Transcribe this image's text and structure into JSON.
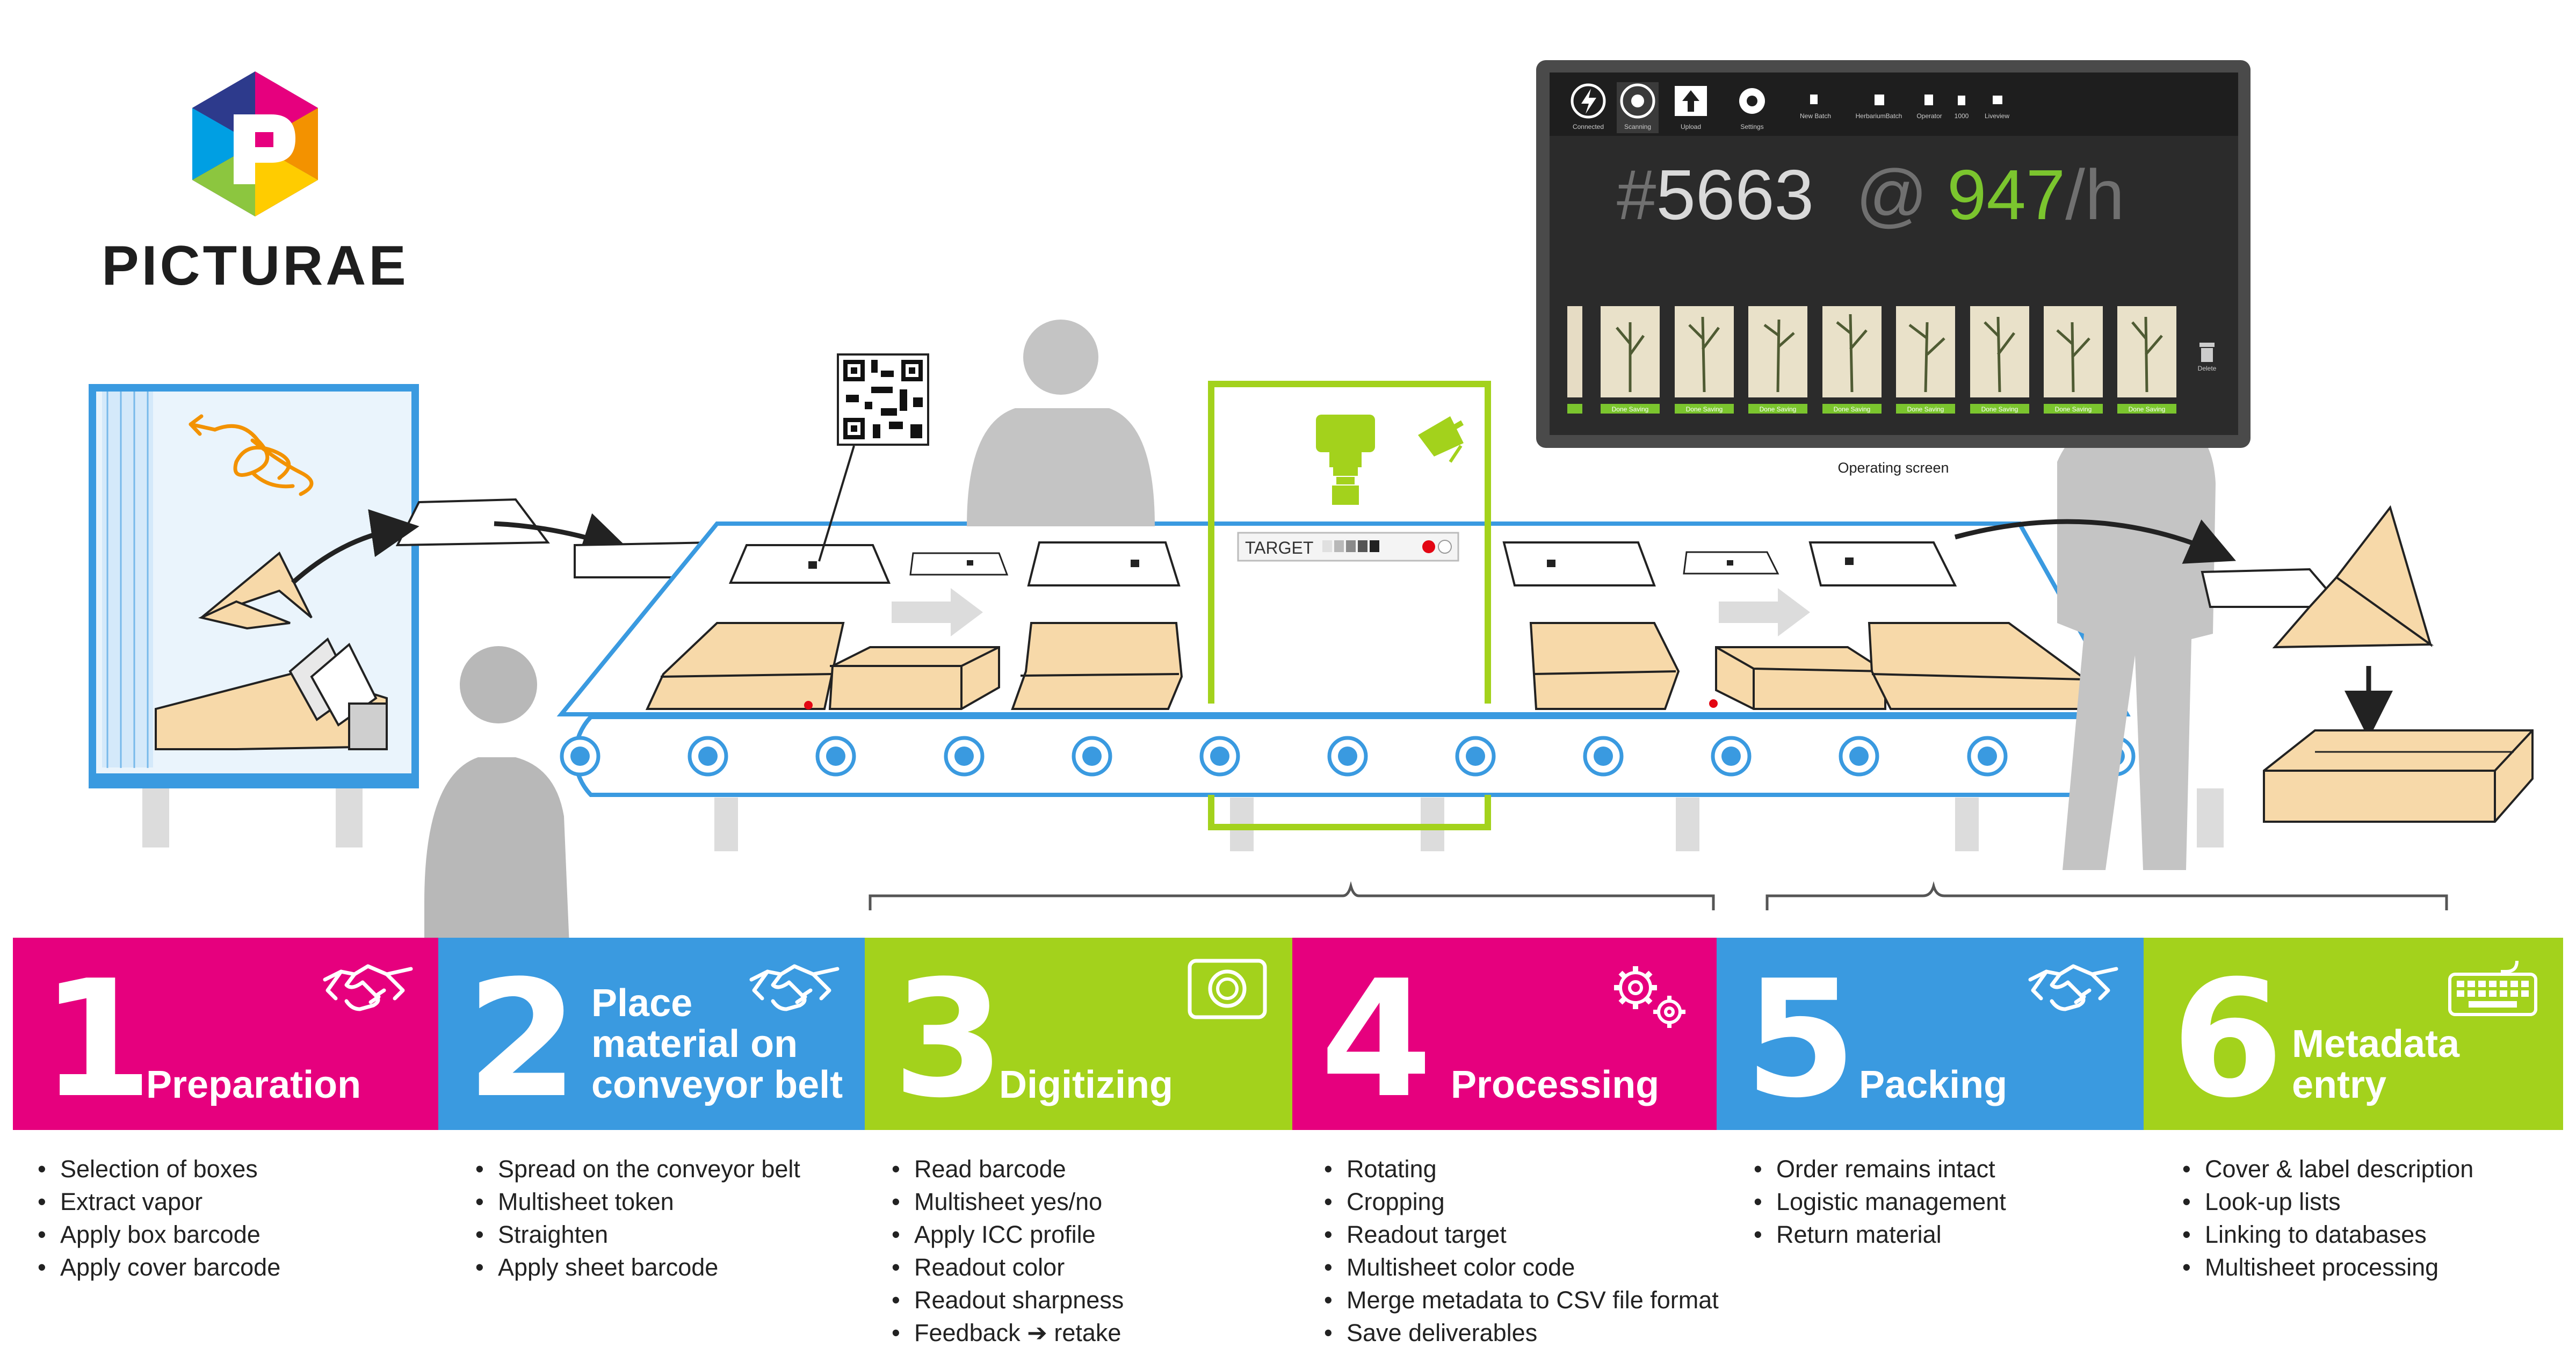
{
  "brand": {
    "name": "PICTURAE"
  },
  "barcode_target": {
    "label": "TARGET"
  },
  "screen": {
    "caption": "Operating screen",
    "toolbar": [
      {
        "label": "Connected",
        "icon": "lightning-icon"
      },
      {
        "label": "Scanning",
        "icon": "aperture-icon"
      },
      {
        "label": "Upload",
        "icon": "upload-icon"
      },
      {
        "label": "Settings",
        "icon": "gear-icon"
      },
      {
        "label": "New Batch",
        "icon": "flag-icon"
      },
      {
        "label": "HerbariumBatch",
        "icon": "batch-icon"
      },
      {
        "label": "Operator",
        "icon": "operator-icon"
      },
      {
        "label": "1000",
        "icon": "counter-icon"
      },
      {
        "label": "Liveview",
        "icon": "video-icon"
      }
    ],
    "count_prefix": "#",
    "count": "5663",
    "at": "@",
    "rate": "947",
    "rate_unit": "/h",
    "thumbs_status": "Done Saving",
    "delete_label": "Delete"
  },
  "steps": [
    {
      "number": "1",
      "title": [
        "Preparation"
      ],
      "icon": "handshake-icon",
      "color": "#e6007e",
      "bullets": [
        "Selection of boxes",
        "Extract vapor",
        "Apply box barcode",
        "Apply cover barcode"
      ]
    },
    {
      "number": "2",
      "title": [
        "Place",
        "material on",
        "conveyor belt"
      ],
      "icon": "handshake-icon",
      "color": "#3a9ae0",
      "bullets": [
        "Spread on the conveyor belt",
        "Multisheet token",
        "Straighten",
        "Apply sheet barcode"
      ]
    },
    {
      "number": "3",
      "title": [
        "Digitizing"
      ],
      "icon": "camera-icon",
      "color": "#a3d21c",
      "bullets": [
        "Read barcode",
        "Multisheet yes/no",
        "Apply ICC profile",
        "Readout color",
        "Readout sharpness",
        "Feedback ➔ retake"
      ]
    },
    {
      "number": "4",
      "title": [
        "Processing"
      ],
      "icon": "gears-icon",
      "color": "#e6007e",
      "bullets": [
        "Rotating",
        "Cropping",
        "Readout target",
        "Multisheet color code",
        "Merge metadata to CSV file format",
        "Save deliverables"
      ]
    },
    {
      "number": "5",
      "title": [
        "Packing"
      ],
      "icon": "handshake-icon",
      "color": "#3a9ae0",
      "bullets": [
        "Order remains intact",
        "Logistic management",
        "Return material"
      ]
    },
    {
      "number": "6",
      "title": [
        "Metadata",
        "entry"
      ],
      "icon": "keyboard-icon",
      "color": "#a3d21c",
      "bullets": [
        "Cover & label description",
        "Look-up lists",
        "Linking to databases",
        "Multisheet processing"
      ]
    }
  ]
}
